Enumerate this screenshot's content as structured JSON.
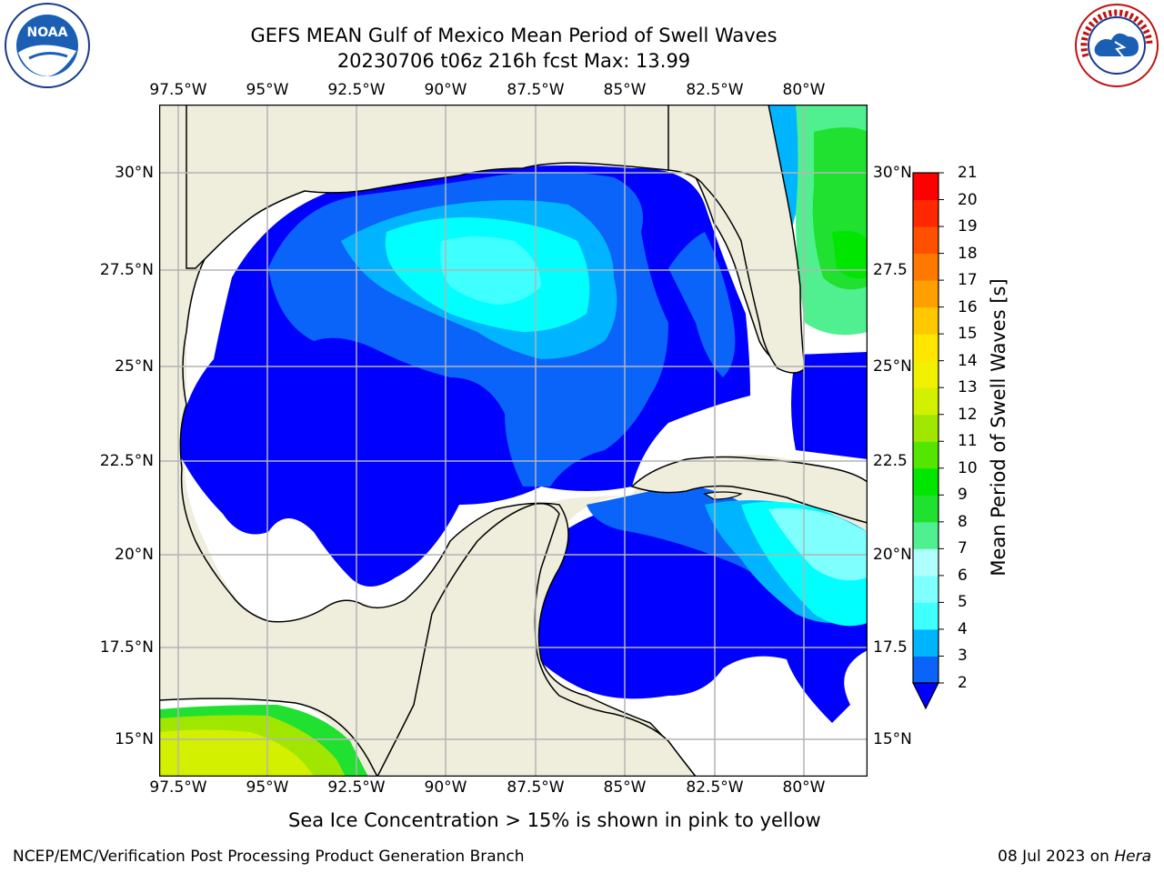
{
  "title": {
    "line1": "GEFS MEAN Gulf of Mexico Mean Period of Swell Waves",
    "line2": "20230706 t06z 216h fcst   Max: 13.99"
  },
  "map": {
    "lon_ticks": [
      "97.5°W",
      "95°W",
      "92.5°W",
      "90°W",
      "87.5°W",
      "85°W",
      "82.5°W",
      "80°W"
    ],
    "lat_ticks_left": [
      "30°N",
      "27.5°N",
      "25°N",
      "22.5°N",
      "20°N",
      "17.5°N",
      "15°N"
    ],
    "lat_ticks_right": [
      "30°N",
      "27.5",
      "25°N",
      "22.5",
      "20°N",
      "17.5",
      "15°N"
    ],
    "extent": {
      "lon_min": -98,
      "lon_max": -78.2,
      "lat_min": 14,
      "lat_max": 31.6
    },
    "land_color": "#efeddc",
    "ocean_nodata_color": "#ffffff",
    "grid": true
  },
  "colorbar": {
    "label": "Mean Period of Swell Waves [s]",
    "ticks": [
      "21",
      "20",
      "19",
      "18",
      "17",
      "16",
      "15",
      "14",
      "13",
      "12",
      "11",
      "10",
      "9",
      "8",
      "7",
      "6",
      "5",
      "4",
      "3",
      "2"
    ],
    "levels": [
      2,
      3,
      4,
      5,
      6,
      7,
      8,
      9,
      10,
      11,
      12,
      13,
      14,
      15,
      16,
      17,
      18,
      19,
      20,
      21
    ],
    "colors": [
      "#0000ff",
      "#0a64fa",
      "#00b4ff",
      "#00ffff",
      "#40ffff",
      "#80ffff",
      "#b0ffff",
      "#50f090",
      "#20e030",
      "#00e600",
      "#55e600",
      "#a0e600",
      "#d2f000",
      "#f0f000",
      "#ffe600",
      "#ffc800",
      "#ffa000",
      "#ff7800",
      "#ff5000",
      "#ff2800",
      "#ff0000"
    ],
    "extend": "min"
  },
  "caption": "Sea Ice Concentration > 15% is shown in pink to yellow",
  "footer": {
    "left": "NCEP/EMC/Verification Post Processing Product Generation Branch",
    "date": "08 Jul 2023 on ",
    "machine": "Hera"
  },
  "logos": {
    "left_text": "NOAA",
    "right_text": "NATIONAL WEATHER SERVICE"
  }
}
